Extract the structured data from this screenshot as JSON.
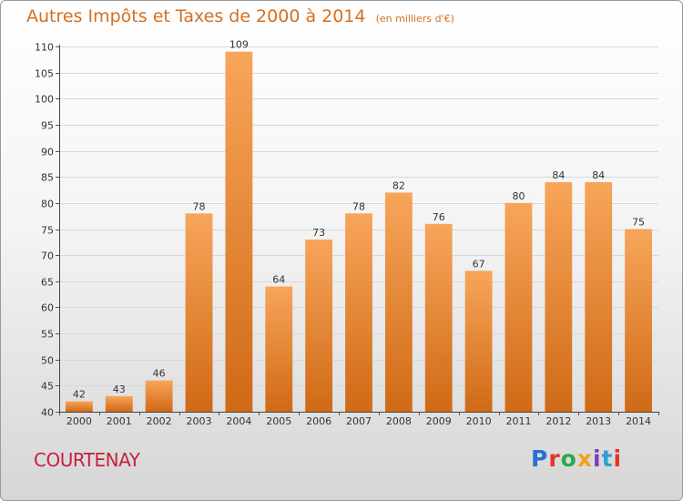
{
  "title": "Autres Impôts et Taxes de 2000 à 2014",
  "unit_note": "(en milliers d'€)",
  "place": "COURTENAY",
  "logo": {
    "text": "Proxiti",
    "colors": [
      "#2a6fd6",
      "#e8322a",
      "#2aa84a",
      "#f0a21e",
      "#7a3fb6",
      "#2a9fd6",
      "#e8322a"
    ]
  },
  "colors": {
    "bar_top": "#f8a55a",
    "bar_bottom": "#cf6a16",
    "title": "#d4701f",
    "place": "#c8203d"
  },
  "chart_data": {
    "type": "bar",
    "title": "Autres Impôts et Taxes de 2000 à 2014",
    "subtitle": "(en milliers d'€)",
    "categories": [
      "2000",
      "2001",
      "2002",
      "2003",
      "2004",
      "2005",
      "2006",
      "2007",
      "2008",
      "2009",
      "2010",
      "2011",
      "2012",
      "2013",
      "2014"
    ],
    "values": [
      42,
      43,
      46,
      78,
      109,
      64,
      73,
      78,
      82,
      76,
      67,
      80,
      84,
      84,
      75
    ],
    "ylim": [
      40,
      110
    ],
    "yticks": [
      40,
      45,
      50,
      55,
      60,
      65,
      70,
      75,
      80,
      85,
      90,
      95,
      100,
      105,
      110
    ],
    "grid": true,
    "data_labels": true
  }
}
